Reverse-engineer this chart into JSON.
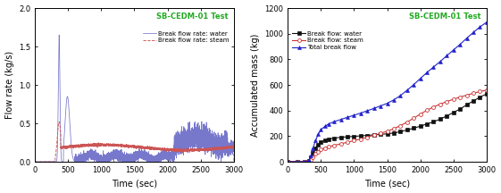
{
  "title": "SB-CEDM-01 Test",
  "title_color": "#22aa22",
  "left": {
    "xlabel": "Time (sec)",
    "ylabel": "Flow rate (kg/s)",
    "xlim": [
      0,
      3000
    ],
    "ylim": [
      0.0,
      2.0
    ],
    "yticks": [
      0.0,
      0.5,
      1.0,
      1.5,
      2.0
    ],
    "xticks": [
      0,
      500,
      1000,
      1500,
      2000,
      2500,
      3000
    ],
    "legend_water": "Break flow rate: water",
    "legend_steam": "Break flow rate: steam",
    "water_color": "#7777cc",
    "steam_color": "#cc5555"
  },
  "right": {
    "xlabel": "Time (sec)",
    "ylabel": "Accumulated mass (kg)",
    "xlim": [
      0,
      3000
    ],
    "ylim": [
      0,
      1200
    ],
    "yticks": [
      0,
      200,
      400,
      600,
      800,
      1000,
      1200
    ],
    "xticks": [
      0,
      500,
      1000,
      1500,
      2000,
      2500,
      3000
    ],
    "legend_water": "Break flow: water",
    "legend_steam": "Break flow: steam",
    "legend_total": "Total break flow",
    "water_color": "#111111",
    "steam_color": "#cc3333",
    "total_color": "#2222cc"
  }
}
